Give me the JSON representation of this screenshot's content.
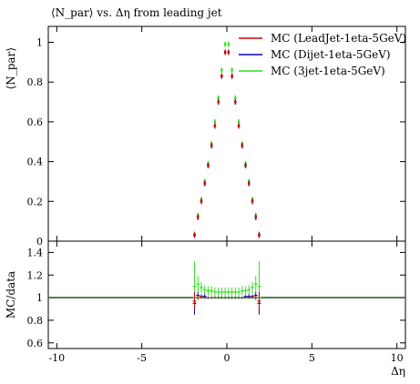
{
  "chart_data": [
    {
      "type": "scatter",
      "panel": "main",
      "title": "⟨N_par⟩ vs. Δη from leading jet",
      "ylabel": "⟨N_par⟩",
      "xlabel": "",
      "xlim": [
        -10.5,
        10.5
      ],
      "ylim": [
        0,
        1.08
      ],
      "x_ticks": [
        -10,
        -5,
        0,
        5,
        10
      ],
      "y_ticks": [
        0,
        0.2,
        0.4,
        0.6,
        0.8,
        1
      ],
      "y_tick_labels": [
        "0",
        "0.2",
        "0.4",
        "0.6",
        "0.8",
        "1"
      ],
      "legend_position": "top-right",
      "x": [
        -1.9,
        -1.7,
        -1.5,
        -1.3,
        -1.1,
        -0.9,
        -0.7,
        -0.5,
        -0.3,
        -0.1,
        0.1,
        0.3,
        0.5,
        0.7,
        0.9,
        1.1,
        1.3,
        1.5,
        1.7,
        1.9
      ],
      "series": [
        {
          "name": "MC (LeadJet-1eta-5GeV)",
          "color": "#d40000",
          "values": [
            0.03,
            0.12,
            0.2,
            0.29,
            0.38,
            0.48,
            0.58,
            0.7,
            0.83,
            0.95,
            0.95,
            0.83,
            0.7,
            0.58,
            0.48,
            0.38,
            0.29,
            0.2,
            0.12,
            0.03
          ]
        },
        {
          "name": "MC (Dijet-1eta-5GeV)",
          "color": "#0000cc",
          "values": [
            0.03,
            0.12,
            0.2,
            0.29,
            0.38,
            0.48,
            0.58,
            0.7,
            0.83,
            0.95,
            0.95,
            0.83,
            0.7,
            0.58,
            0.48,
            0.38,
            0.29,
            0.2,
            0.12,
            0.03
          ]
        },
        {
          "name": "MC (3jet-1eta-5GeV)",
          "color": "#33dd22",
          "values": [
            0.035,
            0.13,
            0.21,
            0.3,
            0.39,
            0.49,
            0.6,
            0.72,
            0.86,
            0.99,
            0.99,
            0.86,
            0.72,
            0.6,
            0.49,
            0.39,
            0.3,
            0.21,
            0.13,
            0.035
          ]
        }
      ]
    },
    {
      "type": "line",
      "panel": "ratio",
      "ylabel": "MC/data",
      "xlabel": "Δη",
      "xlim": [
        -10.5,
        10.5
      ],
      "ylim": [
        0.55,
        1.5
      ],
      "x_ticks": [
        -10,
        -5,
        0,
        5,
        10
      ],
      "y_ticks": [
        0.6,
        0.8,
        1,
        1.2,
        1.4
      ],
      "y_tick_labels": [
        "0.6",
        "0.8",
        "1",
        "1.2",
        "1.4"
      ],
      "reference_value": 1,
      "x_ratio": [
        -1.9,
        -1.7,
        -1.5,
        -1.3,
        -1.1,
        -0.9,
        -0.7,
        -0.5,
        -0.3,
        -0.1,
        0.1,
        0.3,
        0.5,
        0.7,
        0.9,
        1.1,
        1.3,
        1.5,
        1.7,
        1.9
      ],
      "series": [
        {
          "name": "MC (LeadJet-1eta-5GeV)",
          "color": "#d40000",
          "values": [
            0.97,
            1.0,
            1.01,
            1.0,
            1.0,
            1.0,
            1.0,
            1.0,
            1.0,
            1.0,
            1.0,
            1.0,
            1.0,
            1.0,
            1.0,
            1.0,
            1.0,
            1.01,
            1.0,
            0.97
          ],
          "errors": [
            0.08,
            0.02,
            0.01,
            0.01,
            0.01,
            0.01,
            0.01,
            0.01,
            0.01,
            0.01,
            0.01,
            0.01,
            0.01,
            0.01,
            0.01,
            0.01,
            0.01,
            0.01,
            0.02,
            0.08
          ]
        },
        {
          "name": "MC (Dijet-1eta-5GeV)",
          "color": "#0000cc",
          "values": [
            0.95,
            1.02,
            1.01,
            1.01,
            1.0,
            1.0,
            1.0,
            1.0,
            1.0,
            1.0,
            1.0,
            1.0,
            1.0,
            1.0,
            1.0,
            1.01,
            1.01,
            1.01,
            1.02,
            0.95
          ],
          "errors": [
            0.1,
            0.03,
            0.02,
            0.02,
            0.01,
            0.01,
            0.01,
            0.01,
            0.01,
            0.01,
            0.01,
            0.01,
            0.01,
            0.01,
            0.01,
            0.01,
            0.02,
            0.02,
            0.03,
            0.1
          ]
        },
        {
          "name": "MC (3jet-1eta-5GeV)",
          "color": "#33dd22",
          "values": [
            1.1,
            1.12,
            1.09,
            1.07,
            1.06,
            1.06,
            1.05,
            1.05,
            1.05,
            1.05,
            1.05,
            1.05,
            1.05,
            1.05,
            1.06,
            1.06,
            1.07,
            1.09,
            1.12,
            1.1
          ],
          "errors": [
            0.22,
            0.07,
            0.05,
            0.04,
            0.04,
            0.04,
            0.04,
            0.04,
            0.04,
            0.04,
            0.04,
            0.04,
            0.04,
            0.04,
            0.04,
            0.04,
            0.04,
            0.05,
            0.07,
            0.22
          ]
        }
      ]
    }
  ]
}
